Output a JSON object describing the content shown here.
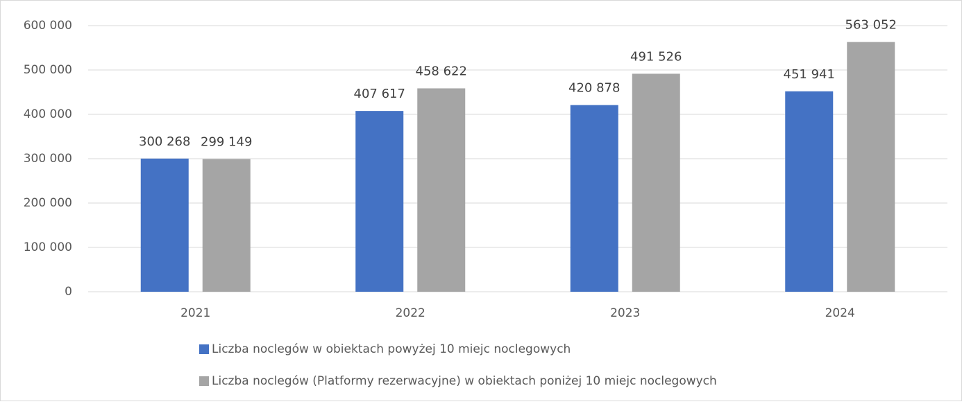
{
  "chart_data": {
    "type": "bar",
    "categories": [
      "2021",
      "2022",
      "2023",
      "2024"
    ],
    "series": [
      {
        "name": "Liczba noclegów w obiektach powyżej 10 miejc noclegowych",
        "color": "#4472c4",
        "values": [
          300268,
          407617,
          420878,
          451941
        ],
        "value_labels": [
          "300 268",
          "407 617",
          "420 878",
          "451 941"
        ]
      },
      {
        "name": "Liczba noclegów (Platformy rezerwacyjne) w obiektach poniżej 10 miejc noclegowych",
        "color": "#a5a5a5",
        "values": [
          299149,
          458622,
          491526,
          563052
        ],
        "value_labels": [
          "299 149",
          "458 622",
          "491 526",
          "563 052"
        ]
      }
    ],
    "ylim": [
      0,
      600000
    ],
    "yticks": [
      0,
      {
        "value": 100000,
        "label": "100 000"
      },
      {
        "value": 200000,
        "label": "200 000"
      },
      {
        "value": 300000,
        "label": "300 000"
      },
      {
        "value": 400000,
        "label": "400 000"
      },
      {
        "value": 500000,
        "label": "500 000"
      },
      {
        "value": 600000,
        "label": "600 000"
      }
    ],
    "grid": true,
    "legend": "bottom"
  }
}
